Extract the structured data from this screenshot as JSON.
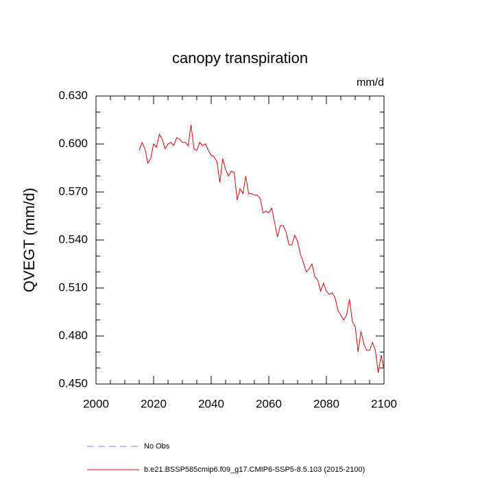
{
  "chart_data": {
    "type": "line",
    "title": "canopy transpiration",
    "units": "mm/d",
    "y_label": "QVEGT  (mm/d)",
    "x": [
      2015,
      2016,
      2017,
      2018,
      2019,
      2020,
      2021,
      2022,
      2023,
      2024,
      2025,
      2026,
      2027,
      2028,
      2029,
      2030,
      2031,
      2032,
      2033,
      2034,
      2035,
      2036,
      2037,
      2038,
      2039,
      2040,
      2041,
      2042,
      2043,
      2044,
      2045,
      2046,
      2047,
      2048,
      2049,
      2050,
      2051,
      2052,
      2053,
      2054,
      2055,
      2056,
      2057,
      2058,
      2059,
      2060,
      2061,
      2062,
      2063,
      2064,
      2065,
      2066,
      2067,
      2068,
      2069,
      2070,
      2071,
      2072,
      2073,
      2074,
      2075,
      2076,
      2077,
      2078,
      2079,
      2080,
      2081,
      2082,
      2083,
      2084,
      2085,
      2086,
      2087,
      2088,
      2089,
      2090,
      2091,
      2092,
      2093,
      2094,
      2095,
      2096,
      2097,
      2098,
      2099,
      2100
    ],
    "legend": [
      {
        "name": "No Obs",
        "color": "#8080ff",
        "dashed": true
      }
    ],
    "series": [
      {
        "name": "b.e21.BSSP585cmip6.f09_g17.CMIP6-SSP5-8.5.103 (2015-2100)",
        "color": "#e00000",
        "values": [
          0.596,
          0.601,
          0.597,
          0.588,
          0.591,
          0.6,
          0.598,
          0.606,
          0.603,
          0.597,
          0.6,
          0.601,
          0.599,
          0.604,
          0.603,
          0.601,
          0.601,
          0.599,
          0.612,
          0.597,
          0.596,
          0.601,
          0.599,
          0.6,
          0.596,
          0.593,
          0.592,
          0.589,
          0.576,
          0.591,
          0.584,
          0.58,
          0.583,
          0.582,
          0.565,
          0.572,
          0.569,
          0.58,
          0.569,
          0.569,
          0.568,
          0.568,
          0.566,
          0.557,
          0.558,
          0.557,
          0.56,
          0.551,
          0.542,
          0.549,
          0.549,
          0.545,
          0.537,
          0.537,
          0.543,
          0.539,
          0.531,
          0.526,
          0.52,
          0.522,
          0.525,
          0.517,
          0.515,
          0.508,
          0.513,
          0.508,
          0.506,
          0.507,
          0.504,
          0.496,
          0.493,
          0.49,
          0.493,
          0.503,
          0.489,
          0.486,
          0.47,
          0.483,
          0.475,
          0.471,
          0.471,
          0.476,
          0.471,
          0.457,
          0.468,
          0.459
        ]
      }
    ],
    "xlim": [
      2000,
      2100
    ],
    "xticks": [
      2000,
      2020,
      2040,
      2060,
      2080,
      2100
    ],
    "ylim": [
      0.45,
      0.63
    ],
    "yticks": [
      {
        "value": 0.45,
        "label": "0.450"
      },
      {
        "value": 0.48,
        "label": "0.480"
      },
      {
        "value": 0.51,
        "label": "0.510"
      },
      {
        "value": 0.54,
        "label": "0.540"
      },
      {
        "value": 0.57,
        "label": "0.570"
      },
      {
        "value": 0.6,
        "label": "0.600"
      },
      {
        "value": 0.63,
        "label": "0.630"
      }
    ]
  }
}
